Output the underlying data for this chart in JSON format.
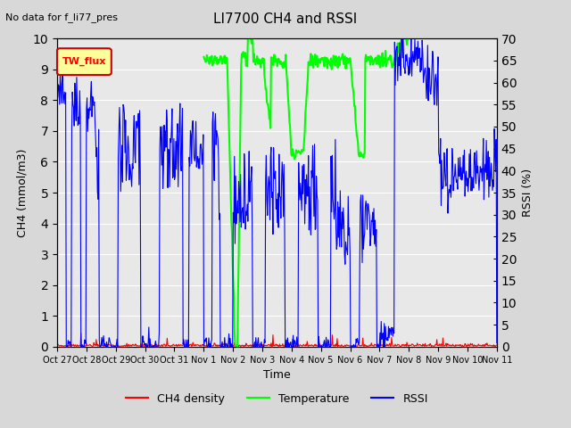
{
  "title": "LI7700 CH4 and RSSI",
  "subtitle": "No data for f_li77_pres",
  "xlabel": "Time",
  "ylabel_left": "CH4 (mmol/m3)",
  "ylabel_right": "RSSI (%)",
  "ylim_left": [
    0.0,
    10.0
  ],
  "ylim_right": [
    0,
    70
  ],
  "yticks_left": [
    0.0,
    1.0,
    2.0,
    3.0,
    4.0,
    5.0,
    6.0,
    7.0,
    8.0,
    9.0,
    10.0
  ],
  "yticks_right": [
    0,
    5,
    10,
    15,
    20,
    25,
    30,
    35,
    40,
    45,
    50,
    55,
    60,
    65,
    70
  ],
  "xtick_labels": [
    "Oct 27",
    "Oct 28",
    "Oct 29",
    "Oct 30",
    "Oct 31",
    "Nov 1",
    "Nov 2",
    "Nov 3",
    "Nov 4",
    "Nov 5",
    "Nov 6",
    "Nov 7",
    "Nov 8",
    "Nov 9",
    "Nov 10",
    "Nov 11"
  ],
  "bg_color": "#d8d8d8",
  "plot_bg_color": "#e8e8e8",
  "legend_box_color": "#ffff99",
  "legend_box_edge": "#cc0000",
  "legend_label": "TW_flux",
  "ch4_color": "#ff0000",
  "temp_color": "#00ff00",
  "rssi_color": "#0000ff",
  "grid_color": "#ffffff",
  "n_days": 15
}
